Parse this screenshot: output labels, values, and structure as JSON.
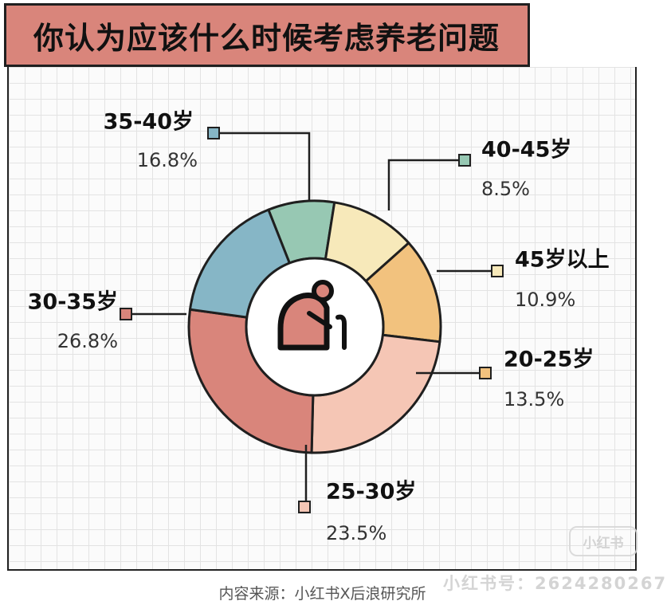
{
  "title": "你认为应该什么时候考虑养老问题",
  "source": "内容来源：小红书X后浪研究所",
  "watermark": "小红书号：2624280267",
  "watermark_logo": "小红书",
  "chart_data": {
    "type": "pie",
    "style": "donut",
    "center_icon": "elderly-person-with-cane-icon",
    "slices": [
      {
        "label": "40-45岁",
        "value": 8.5,
        "display": "8.5%",
        "color": "#97c8b3"
      },
      {
        "label": "45岁以上",
        "value": 10.9,
        "display": "10.9%",
        "color": "#f7e9ba"
      },
      {
        "label": "20-25岁",
        "value": 13.5,
        "display": "13.5%",
        "color": "#f2c27e"
      },
      {
        "label": "25-30岁",
        "value": 23.5,
        "display": "23.5%",
        "color": "#f5c6b5"
      },
      {
        "label": "30-35岁",
        "value": 26.8,
        "display": "26.8%",
        "color": "#d9857b"
      },
      {
        "label": "35-40岁",
        "value": 16.8,
        "display": "16.8%",
        "color": "#86b6c6"
      }
    ]
  }
}
